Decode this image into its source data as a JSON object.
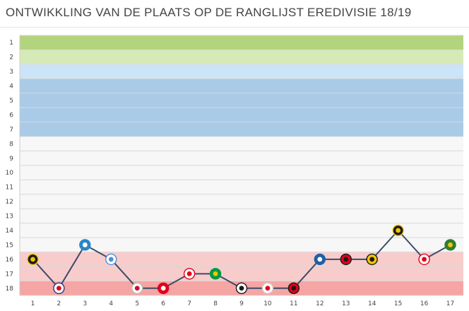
{
  "title": "ONTWIKKLING VAN DE PLAATS OP DE RANGLIJST EREDIVISIE 18/19",
  "chart_data": {
    "type": "line",
    "title": "ONTWIKKLING VAN DE PLAATS OP DE RANGLIJST EREDIVISIE 18/19",
    "xlabel": "",
    "ylabel": "",
    "x": [
      1,
      2,
      3,
      4,
      5,
      6,
      7,
      8,
      9,
      10,
      11,
      12,
      13,
      14,
      15,
      16,
      17
    ],
    "y_ticks": [
      1,
      2,
      3,
      4,
      5,
      6,
      7,
      8,
      9,
      10,
      11,
      12,
      13,
      14,
      15,
      16,
      17,
      18
    ],
    "ylim": [
      1,
      18
    ],
    "y_inverted": true,
    "grid": true,
    "line_color": "#3b4b69",
    "series": [
      {
        "values": [
          16,
          18,
          15,
          16,
          18,
          18,
          17,
          17,
          18,
          18,
          18,
          16,
          16,
          16,
          14,
          16,
          15
        ]
      }
    ],
    "bands": [
      {
        "from": 1,
        "to": 1,
        "color": "#b3d47f"
      },
      {
        "from": 2,
        "to": 2,
        "color": "#d6eab8"
      },
      {
        "from": 3,
        "to": 3,
        "color": "#cce4f8"
      },
      {
        "from": 4,
        "to": 7,
        "color": "#a9cbe8"
      },
      {
        "from": 8,
        "to": 15,
        "color": "#f7f7f7"
      },
      {
        "from": 16,
        "to": 17,
        "color": "#f8cccb"
      },
      {
        "from": 18,
        "to": 18,
        "color": "#f5a5a3"
      }
    ],
    "opponent_badges": [
      {
        "bg": "#1a1a1a",
        "fg": "#f2c500",
        "ring": "#f2c500"
      },
      {
        "bg": "#ffffff",
        "fg": "#e2001a",
        "ring": "#1e3c8c"
      },
      {
        "bg": "#2c86c8",
        "fg": "#ffffff",
        "ring": "#2c86c8"
      },
      {
        "bg": "#ffffff",
        "fg": "#4a90d9",
        "ring": "#4a90d9"
      },
      {
        "bg": "#ffffff",
        "fg": "#c8102e",
        "ring": "#bbbbbb"
      },
      {
        "bg": "#e2001a",
        "fg": "#ffffff",
        "ring": "#e2001a"
      },
      {
        "bg": "#ffffff",
        "fg": "#e2001a",
        "ring": "#e2001a"
      },
      {
        "bg": "#009a44",
        "fg": "#f2c500",
        "ring": "#009a44"
      },
      {
        "bg": "#ffffff",
        "fg": "#1a1a1a",
        "ring": "#1a1a1a"
      },
      {
        "bg": "#ffffff",
        "fg": "#e2001a",
        "ring": "#cccccc"
      },
      {
        "bg": "#e2001a",
        "fg": "#1a1a1a",
        "ring": "#1a1a1a"
      },
      {
        "bg": "#1f5fa8",
        "fg": "#ffffff",
        "ring": "#1f5fa8"
      },
      {
        "bg": "#e2001a",
        "fg": "#1a1a1a",
        "ring": "#1a1a1a"
      },
      {
        "bg": "#f2c500",
        "fg": "#1a1a1a",
        "ring": "#1a1a1a"
      },
      {
        "bg": "#1a1a1a",
        "fg": "#f2c500",
        "ring": "#f2c500"
      },
      {
        "bg": "#ffffff",
        "fg": "#e2001a",
        "ring": "#e2001a"
      },
      {
        "bg": "#2e7d32",
        "fg": "#f2c500",
        "ring": "#2e7d32"
      }
    ]
  }
}
